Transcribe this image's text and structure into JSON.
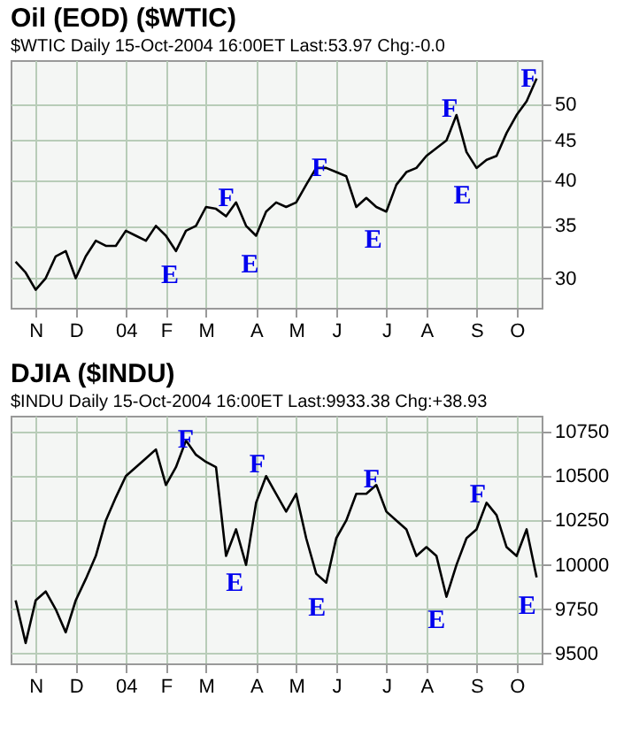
{
  "chart_data": [
    {
      "type": "line",
      "title": "Oil (EOD) ($WTIC)",
      "subtitle": "$WTIC Daily   15-Oct-2004 16:00ET   Last:53.97   Chg:-0.0",
      "categories": [
        null,
        null,
        "N",
        null,
        null,
        null,
        "D",
        null,
        null,
        null,
        null,
        "04",
        null,
        null,
        null,
        "F",
        null,
        null,
        null,
        "M",
        null,
        null,
        null,
        null,
        "A",
        null,
        null,
        null,
        "M",
        null,
        null,
        null,
        "J",
        null,
        null,
        null,
        null,
        "J",
        null,
        null,
        null,
        "A",
        null,
        null,
        null,
        null,
        "S",
        null,
        null,
        null,
        "O",
        null,
        null
      ],
      "series": [
        {
          "color": "#000000",
          "values": [
            31.5,
            30.5,
            29.0,
            30.0,
            32.0,
            32.5,
            30.0,
            32.0,
            33.5,
            33.0,
            33.0,
            34.5,
            34.0,
            33.5,
            35.0,
            34.0,
            32.5,
            34.5,
            35.0,
            37.0,
            36.8,
            36.0,
            37.5,
            35.0,
            34.0,
            36.5,
            37.5,
            37.0,
            37.5,
            39.5,
            41.5,
            41.5,
            41.0,
            40.5,
            37.0,
            38.0,
            37.0,
            36.5,
            39.5,
            41.0,
            41.5,
            43.0,
            44.0,
            45.0,
            48.5,
            43.5,
            41.5,
            42.5,
            43.0,
            46.0,
            48.5,
            50.5,
            54.0
          ]
        }
      ],
      "ylim": [
        27.5,
        57
      ],
      "yticks": [
        30,
        35,
        40,
        45,
        50
      ],
      "log": true,
      "grid": true,
      "annotations": [
        "E",
        "F",
        "E",
        "F",
        "E",
        "F",
        "E",
        "F"
      ]
    },
    {
      "type": "line",
      "title": "DJIA ($INDU)",
      "subtitle": "$INDU Daily   15-Oct-2004 16:00ET   Last:9933.38   Chg:+38.93",
      "categories": [
        null,
        null,
        "N",
        null,
        null,
        null,
        "D",
        null,
        null,
        null,
        null,
        "04",
        null,
        null,
        null,
        "F",
        null,
        null,
        null,
        "M",
        null,
        null,
        null,
        null,
        "A",
        null,
        null,
        null,
        "M",
        null,
        null,
        null,
        "J",
        null,
        null,
        null,
        null,
        "J",
        null,
        null,
        null,
        "A",
        null,
        null,
        null,
        null,
        "S",
        null,
        null,
        null,
        "O",
        null,
        null
      ],
      "series": [
        {
          "color": "#000000",
          "values": [
            9800,
            9560,
            9800,
            9850,
            9750,
            9620,
            9800,
            9920,
            10050,
            10250,
            10380,
            10500,
            10550,
            10600,
            10650,
            10450,
            10550,
            10700,
            10620,
            10580,
            10550,
            10050,
            10200,
            10000,
            10350,
            10500,
            10400,
            10300,
            10400,
            10150,
            9950,
            9900,
            10150,
            10250,
            10400,
            10400,
            10450,
            10300,
            10250,
            10200,
            10050,
            10100,
            10050,
            9820,
            10000,
            10150,
            10200,
            10350,
            10280,
            10100,
            10050,
            10200,
            9930
          ]
        }
      ],
      "ylim": [
        9445,
        10840
      ],
      "yticks": [
        9500,
        9750,
        10000,
        10250,
        10500,
        10750
      ],
      "grid": true,
      "annotations": [
        "F",
        "E",
        "F",
        "E",
        "F",
        "E",
        "F",
        "E"
      ]
    }
  ]
}
